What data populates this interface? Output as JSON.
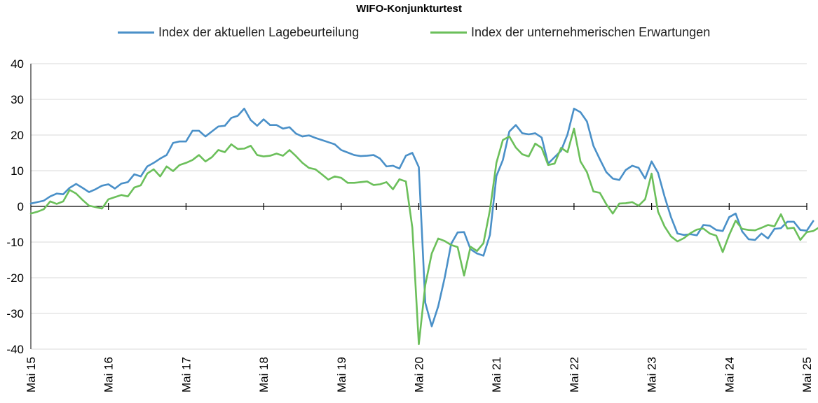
{
  "colors": {
    "series1": "#4a90c8",
    "series2": "#6bbf5a",
    "grid": "#d9d9d9",
    "axis": "#000000"
  },
  "chart_data": {
    "type": "line",
    "title": "WIFO-Konjunkturtest",
    "ylim": [
      -40,
      40
    ],
    "yticks": [
      40,
      30,
      20,
      10,
      0,
      -10,
      -20,
      -30,
      -40
    ],
    "x_tick_labels": [
      "Mai 15",
      "Mai 16",
      "Mai 17",
      "Mai 18",
      "Mai 19",
      "Mai 20",
      "Mai 21",
      "Mai 22",
      "Mai 23",
      "Mai 24",
      "Mai 25"
    ],
    "x_range_months": [
      0,
      120
    ],
    "grid": "horizontal",
    "legend_position": "top",
    "series": [
      {
        "name": "Index der aktuellen Lagebeurteilung",
        "values": [
          0.8,
          1.2,
          1.6,
          2.8,
          3.6,
          3.4,
          5.2,
          6.3,
          5.2,
          4.0,
          4.8,
          5.8,
          6.2,
          5.0,
          6.4,
          6.8,
          9.0,
          8.4,
          11.2,
          12.2,
          13.4,
          14.4,
          17.8,
          18.2,
          18.2,
          21.2,
          21.2,
          19.6,
          21.0,
          22.4,
          22.6,
          24.8,
          25.4,
          27.4,
          24.2,
          22.6,
          24.4,
          22.8,
          22.8,
          21.8,
          22.2,
          20.4,
          19.6,
          19.9,
          19.2,
          18.6,
          18.0,
          17.4,
          15.8,
          15.1,
          14.4,
          14.1,
          14.2,
          14.4,
          13.4,
          11.2,
          11.4,
          10.6,
          14.2,
          15.0,
          11.0,
          -27.0,
          -33.6,
          -28.0,
          -20.0,
          -10.5,
          -7.3,
          -7.2,
          -12.0,
          -13.2,
          -13.8,
          -8.0,
          8.5,
          13.0,
          21.0,
          22.8,
          20.5,
          20.2,
          20.5,
          19.3,
          12.0,
          13.8,
          15.6,
          20.2,
          27.4,
          26.4,
          23.8,
          17.0,
          13.2,
          9.6,
          7.8,
          7.4,
          10.2,
          11.4,
          10.8,
          7.8,
          12.6,
          9.4,
          2.8,
          -3.0,
          -7.6,
          -8.0,
          -7.8,
          -8.1,
          -5.2,
          -5.4,
          -6.6,
          -6.9,
          -3.0,
          -2.0,
          -7.0,
          -9.2,
          -9.4,
          -7.6,
          -9.0,
          -6.3,
          -6.1,
          -4.3,
          -4.3,
          -6.6,
          -6.8,
          -4.1
        ]
      },
      {
        "name": "Index der unternehmerischen Erwartungen",
        "values": [
          -2.0,
          -1.5,
          -0.8,
          1.4,
          0.7,
          1.4,
          4.6,
          3.6,
          1.8,
          0.2,
          -0.2,
          -0.6,
          2.0,
          2.6,
          3.2,
          2.8,
          5.3,
          5.9,
          9.2,
          10.4,
          8.4,
          11.2,
          9.9,
          11.6,
          12.2,
          13.0,
          14.4,
          12.6,
          13.8,
          15.8,
          15.2,
          17.4,
          16.1,
          16.2,
          17.0,
          14.4,
          14.0,
          14.2,
          14.8,
          14.2,
          15.8,
          14.1,
          12.2,
          10.8,
          10.4,
          9.0,
          7.5,
          8.4,
          8.0,
          6.6,
          6.6,
          6.8,
          7.0,
          6.0,
          6.2,
          6.8,
          4.8,
          7.6,
          7.0,
          -6.0,
          -38.6,
          -22.0,
          -13.2,
          -9.0,
          -9.7,
          -10.8,
          -11.4,
          -19.4,
          -11.3,
          -12.5,
          -10.3,
          -1.0,
          12.2,
          18.6,
          19.6,
          16.5,
          14.6,
          14.0,
          17.6,
          16.4,
          11.6,
          12.0,
          16.4,
          15.2,
          21.8,
          12.6,
          9.6,
          4.2,
          3.8,
          0.6,
          -2.0,
          0.8,
          0.9,
          1.2,
          0.2,
          2.0,
          9.2,
          -1.5,
          -5.6,
          -8.4,
          -9.8,
          -8.9,
          -7.5,
          -6.5,
          -6.2,
          -7.6,
          -8.2,
          -12.8,
          -8.0,
          -4.0,
          -6.3,
          -6.6,
          -6.7,
          -6.0,
          -5.2,
          -5.6,
          -2.2,
          -6.2,
          -6.0,
          -9.4,
          -7.2,
          -6.9,
          -5.8
        ]
      }
    ]
  }
}
